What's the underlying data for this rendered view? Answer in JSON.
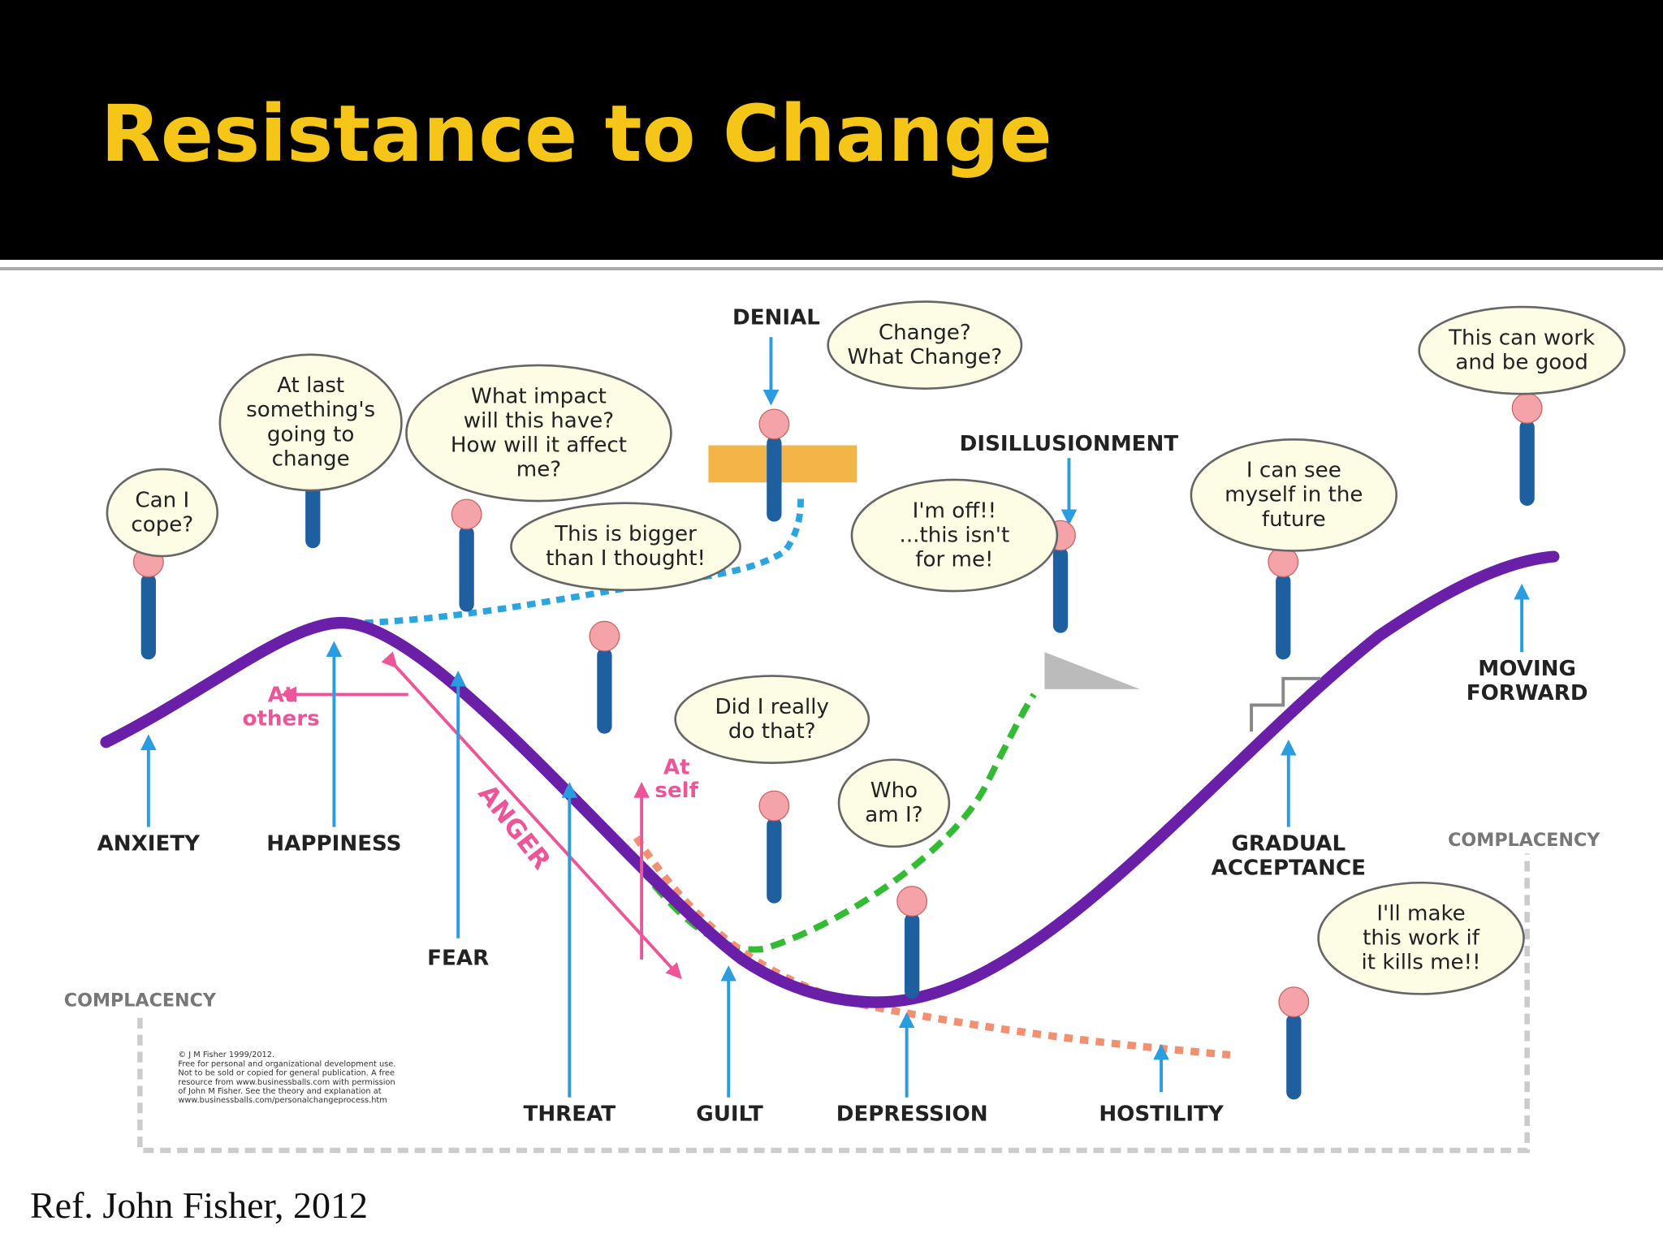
{
  "header": {
    "title": "Resistance to Change"
  },
  "stages": [
    {
      "lines": [
        "ANXIETY"
      ]
    },
    {
      "lines": [
        "HAPPINESS"
      ]
    },
    {
      "lines": [
        "FEAR"
      ]
    },
    {
      "lines": [
        "THREAT"
      ]
    },
    {
      "lines": [
        "GUILT"
      ]
    },
    {
      "lines": [
        "DEPRESSION"
      ]
    },
    {
      "lines": [
        "HOSTILITY"
      ]
    },
    {
      "lines": [
        "GRADUAL",
        "ACCEPTANCE"
      ]
    },
    {
      "lines": [
        "MOVING",
        "FORWARD"
      ]
    },
    {
      "lines": [
        "DENIAL"
      ]
    },
    {
      "lines": [
        "DISILLUSIONMENT"
      ]
    },
    {
      "lines": [
        "COMPLACENCY"
      ]
    },
    {
      "lines": [
        "COMPLACENCY"
      ]
    }
  ],
  "reactions": [
    {
      "lines": [
        "ANGER"
      ]
    },
    {
      "lines": [
        "At",
        "others"
      ]
    },
    {
      "lines": [
        "At",
        "self"
      ]
    }
  ],
  "bubbles": [
    {
      "lines": [
        "Can I",
        "cope?"
      ]
    },
    {
      "lines": [
        "At last",
        "something's",
        "going to",
        "change"
      ]
    },
    {
      "lines": [
        "What impact",
        "will this have?",
        "How will it affect",
        "me?"
      ]
    },
    {
      "lines": [
        "This is bigger",
        "than I thought!"
      ]
    },
    {
      "lines": [
        "Change?",
        "What Change?"
      ]
    },
    {
      "lines": [
        "I'm off!!",
        "...this isn't",
        "for me!"
      ]
    },
    {
      "lines": [
        "I can see",
        "myself in the",
        "future"
      ]
    },
    {
      "lines": [
        "This can work",
        "and be good"
      ]
    },
    {
      "lines": [
        "Did I really",
        "do that?"
      ]
    },
    {
      "lines": [
        "Who",
        "am I?"
      ]
    },
    {
      "lines": [
        "I'll make",
        "this work if",
        "it kills me!!"
      ]
    }
  ],
  "copyright": {
    "lines": [
      "© J M Fisher 1999/2012.",
      "Free for personal and organizational development use.",
      "Not to be sold or copied for general publication. A free",
      "resource from www.businessballs.com with permission",
      "of John M Fisher. See the theory and explanation at",
      "www.businessballs.com/personalchangeprocess.htm"
    ]
  },
  "footer": {
    "reference": "Ref. John Fisher, 2012"
  }
}
